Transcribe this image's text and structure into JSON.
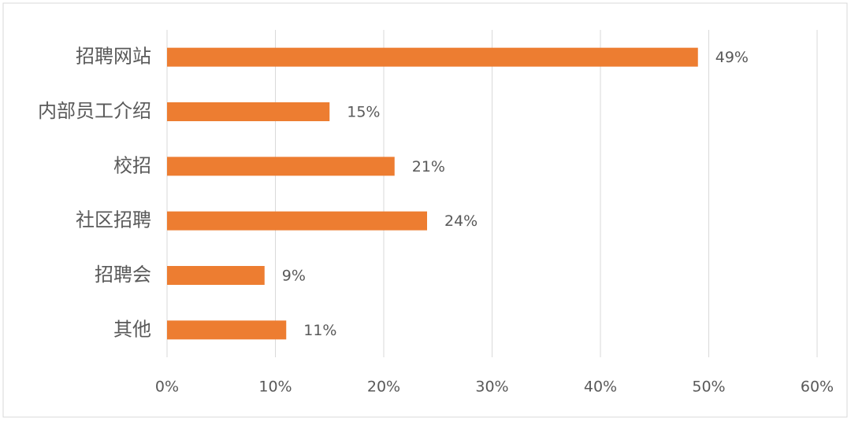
{
  "chart_data": {
    "type": "bar",
    "orientation": "horizontal",
    "categories": [
      "招聘网站",
      "内部员工介绍",
      "校招",
      "社区招聘",
      "招聘会",
      "其他"
    ],
    "values": [
      49,
      15,
      21,
      24,
      9,
      11
    ],
    "value_labels": [
      "49%",
      "15%",
      "21%",
      "24%",
      "9%",
      "11%"
    ],
    "color": "#ed7d31",
    "xlim": [
      0,
      60
    ],
    "xticks": [
      {
        "value": 0,
        "label": "0%"
      },
      {
        "value": 10,
        "label": "10%"
      },
      {
        "value": 20,
        "label": "20%"
      },
      {
        "value": 30,
        "label": "30%"
      },
      {
        "value": 40,
        "label": "40%"
      },
      {
        "value": 50,
        "label": "50%"
      },
      {
        "value": 60,
        "label": "60%"
      }
    ],
    "grid": true
  }
}
